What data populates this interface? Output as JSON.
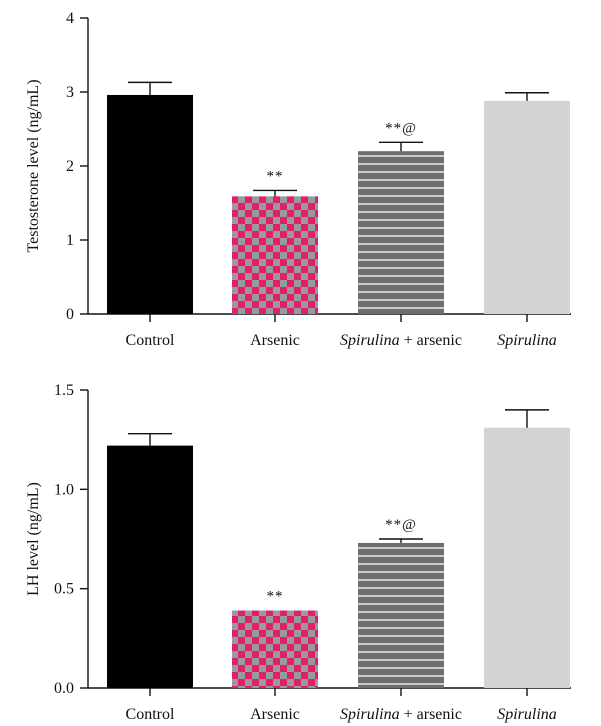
{
  "colors": {
    "control": "#000000",
    "checker_a": "#e0206e",
    "checker_b": "#9a9a9a",
    "striped_bg": "#6e6e6e",
    "striped_line": "#ffffff",
    "spirulina": "#d3d3d3"
  },
  "chart_data": [
    {
      "type": "bar",
      "categories": [
        "Control",
        "Arsenic",
        "Spirulina + arsenic",
        "Spirulina"
      ],
      "category_parts": [
        [
          {
            "text": "Control",
            "italic": false
          }
        ],
        [
          {
            "text": "Arsenic",
            "italic": false
          }
        ],
        [
          {
            "text": "Spirulina",
            "italic": true
          },
          {
            "text": " + arsenic",
            "italic": false
          }
        ],
        [
          {
            "text": "Spirulina",
            "italic": true
          }
        ]
      ],
      "values": [
        2.96,
        1.59,
        2.2,
        2.88
      ],
      "errors": [
        0.17,
        0.08,
        0.12,
        0.11
      ],
      "significance": [
        "",
        "**",
        "**@",
        ""
      ],
      "fills": [
        "solid-black",
        "checker",
        "striped",
        "solid-light"
      ],
      "ylabel": "Testosterone level (ng/mL)",
      "ylim": [
        0,
        4
      ],
      "yticks": [
        0,
        1,
        2,
        3,
        4
      ],
      "ytick_labels": [
        "0",
        "1",
        "2",
        "3",
        "4"
      ],
      "grid": false
    },
    {
      "type": "bar",
      "categories": [
        "Control",
        "Arsenic",
        "Spirulina + arsenic",
        "Spirulina"
      ],
      "category_parts": [
        [
          {
            "text": "Control",
            "italic": false
          }
        ],
        [
          {
            "text": "Arsenic",
            "italic": false
          }
        ],
        [
          {
            "text": "Spirulina",
            "italic": true
          },
          {
            "text": " + arsenic",
            "italic": false
          }
        ],
        [
          {
            "text": "Spirulina",
            "italic": true
          }
        ]
      ],
      "values": [
        1.22,
        0.39,
        0.73,
        1.31
      ],
      "errors": [
        0.06,
        0.0,
        0.02,
        0.09
      ],
      "significance": [
        "",
        "**",
        "**@",
        ""
      ],
      "fills": [
        "solid-black",
        "checker",
        "striped",
        "solid-light"
      ],
      "ylabel": "LH level (ng/mL)",
      "ylim": [
        0,
        1.5
      ],
      "yticks": [
        0,
        0.5,
        1.0,
        1.5
      ],
      "ytick_labels": [
        "0.0",
        "0.5",
        "1.0",
        "1.5"
      ],
      "grid": false
    }
  ]
}
